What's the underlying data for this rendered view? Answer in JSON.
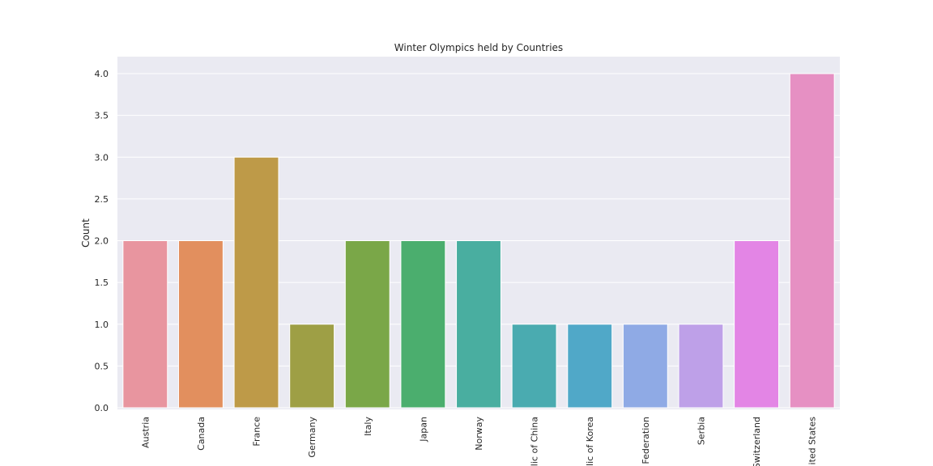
{
  "chart_data": {
    "type": "bar",
    "title": "Winter Olympics held by Countries",
    "xlabel": "",
    "ylabel": "Count",
    "ylim": [
      0,
      4.2
    ],
    "yticks": [
      "0.0",
      "0.5",
      "1.0",
      "1.5",
      "2.0",
      "2.5",
      "3.0",
      "3.5",
      "4.0"
    ],
    "grid": true,
    "categories": [
      "Austria",
      "Canada",
      "France",
      "Germany",
      "Italy",
      "Japan",
      "Norway",
      "People's Republic of China",
      "Republic of Korea",
      "Russian Federation",
      "Serbia",
      "Switzerland",
      "United States"
    ],
    "tick_labels": [
      "Austria",
      "Canada",
      "France",
      "Germany",
      "Italy",
      "Japan",
      "Norway",
      "lic of China",
      "lic of Korea",
      "Federation",
      "Serbia",
      "Switzerland",
      "ited States"
    ],
    "values": [
      2,
      2,
      3,
      1,
      2,
      2,
      2,
      1,
      1,
      1,
      1,
      2,
      4
    ],
    "colors": [
      "#e8959f",
      "#e28f5e",
      "#be9a48",
      "#9e9f45",
      "#7aa748",
      "#4bae6e",
      "#49aea0",
      "#4aabb0",
      "#50a8c8",
      "#8faae5",
      "#bea0e8",
      "#e385e5",
      "#e690c3"
    ]
  }
}
